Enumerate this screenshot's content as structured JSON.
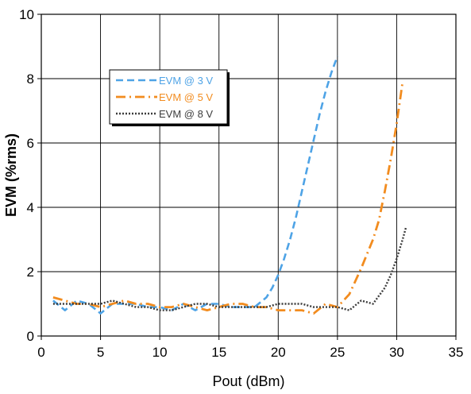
{
  "chart_data": {
    "type": "line",
    "xlabel": "Pout (dBm)",
    "ylabel": "EVM (%rms)",
    "xlim": [
      0,
      35
    ],
    "ylim": [
      0,
      10
    ],
    "xticks": [
      0,
      5,
      10,
      15,
      20,
      25,
      30,
      35
    ],
    "yticks": [
      0,
      2,
      4,
      6,
      8,
      10
    ],
    "grid": true,
    "legend_position": "upper-left",
    "series": [
      {
        "name": "EVM @ 3 V",
        "color": "#4ea3e6",
        "dash": "dashed",
        "x": [
          1,
          2,
          3,
          4,
          5,
          6,
          7,
          8,
          9,
          10,
          11,
          12,
          13,
          14,
          15,
          16,
          17,
          18,
          19,
          19.5,
          20,
          20.5,
          21,
          21.5,
          22,
          22.5,
          23,
          23.5,
          24,
          24.5,
          25
        ],
        "y": [
          1.1,
          0.8,
          1.1,
          1.0,
          0.7,
          1.0,
          1.0,
          1.0,
          0.9,
          0.9,
          0.8,
          1.0,
          0.8,
          1.0,
          1.0,
          0.9,
          0.9,
          0.9,
          1.2,
          1.5,
          1.9,
          2.4,
          3.0,
          3.7,
          4.5,
          5.3,
          6.1,
          6.9,
          7.6,
          8.2,
          8.7
        ]
      },
      {
        "name": "EVM @ 5 V",
        "color": "#f28c1f",
        "dash": "dash-dot",
        "x": [
          1,
          2,
          3,
          4,
          5,
          6,
          7,
          8,
          9,
          10,
          11,
          12,
          13,
          14,
          15,
          16,
          17,
          18,
          19,
          20,
          21,
          22,
          23,
          24,
          25,
          26,
          27,
          28,
          28.5,
          29,
          29.5,
          30,
          30.5
        ],
        "y": [
          1.2,
          1.1,
          1.0,
          1.0,
          0.9,
          1.0,
          1.1,
          1.0,
          1.0,
          0.9,
          0.9,
          1.0,
          0.9,
          0.8,
          0.9,
          1.0,
          1.0,
          0.9,
          0.9,
          0.8,
          0.8,
          0.8,
          0.7,
          1.0,
          0.9,
          1.3,
          2.1,
          3.0,
          3.6,
          4.5,
          5.5,
          6.6,
          7.9
        ]
      },
      {
        "name": "EVM @ 8 V",
        "color": "#3c3c3c",
        "dash": "dotted",
        "x": [
          1,
          2,
          3,
          4,
          5,
          6,
          7,
          8,
          9,
          10,
          11,
          12,
          13,
          14,
          15,
          16,
          17,
          18,
          19,
          20,
          21,
          22,
          23,
          24,
          25,
          26,
          27,
          28,
          29,
          29.5,
          30,
          30.5,
          30.8
        ],
        "y": [
          1.0,
          1.0,
          1.0,
          1.0,
          1.0,
          1.1,
          1.0,
          0.9,
          0.9,
          0.8,
          0.8,
          0.9,
          1.0,
          1.0,
          0.9,
          0.9,
          0.9,
          0.9,
          0.9,
          1.0,
          1.0,
          1.0,
          0.9,
          0.9,
          0.9,
          0.8,
          1.1,
          1.0,
          1.5,
          1.9,
          2.4,
          3.0,
          3.4
        ]
      }
    ]
  }
}
